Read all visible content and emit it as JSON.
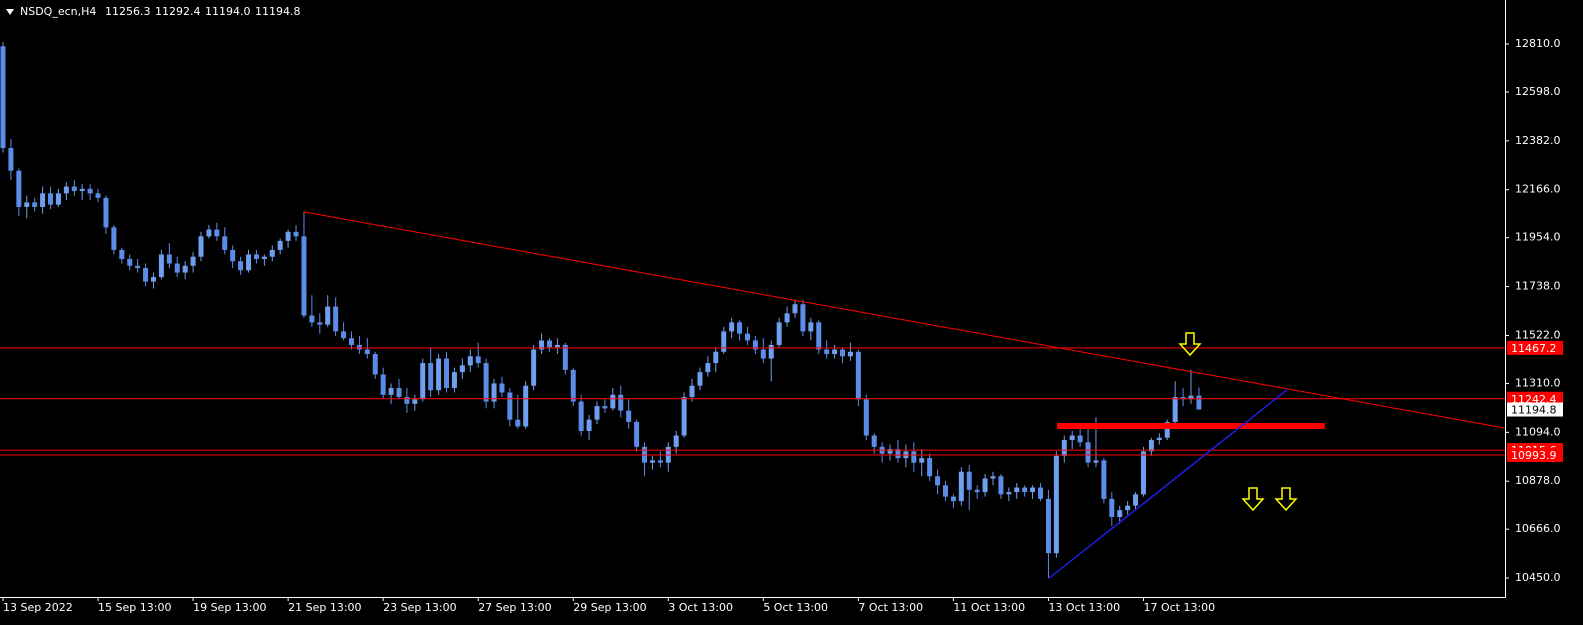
{
  "chart_data": {
    "type": "candlestick",
    "title": "NSDQ_ecn,H4",
    "header_values": [
      "11256.3",
      "11292.4",
      "11194.0",
      "11194.8"
    ],
    "categories": [
      "13 Sep 2022",
      null,
      null,
      null,
      null,
      null,
      null,
      null,
      null,
      null,
      null,
      null,
      "15 Sep 13:00",
      null,
      null,
      null,
      null,
      null,
      null,
      null,
      null,
      null,
      null,
      null,
      "19 Sep 13:00",
      null,
      null,
      null,
      null,
      null,
      null,
      null,
      null,
      null,
      null,
      null,
      "21 Sep 13:00",
      null,
      null,
      null,
      null,
      null,
      null,
      null,
      null,
      null,
      null,
      null,
      "23 Sep 13:00",
      null,
      null,
      null,
      null,
      null,
      null,
      null,
      null,
      null,
      null,
      null,
      "27 Sep 13:00",
      null,
      null,
      null,
      null,
      null,
      null,
      null,
      null,
      null,
      null,
      null,
      "29 Sep 13:00",
      null,
      null,
      null,
      null,
      null,
      null,
      null,
      null,
      null,
      null,
      null,
      "3 Oct 13:00",
      null,
      null,
      null,
      null,
      null,
      null,
      null,
      null,
      null,
      null,
      null,
      "5 Oct 13:00",
      null,
      null,
      null,
      null,
      null,
      null,
      null,
      null,
      null,
      null,
      null,
      "7 Oct 13:00",
      null,
      null,
      null,
      null,
      null,
      null,
      null,
      null,
      null,
      null,
      null,
      "11 Oct 13:00",
      null,
      null,
      null,
      null,
      null,
      null,
      null,
      null,
      null,
      null,
      null,
      "13 Oct 13:00",
      null,
      null,
      null,
      null,
      null,
      null,
      null,
      null,
      null,
      null,
      null,
      "17 Oct 13:00",
      null,
      null,
      null,
      null,
      null,
      null,
      null
    ],
    "open": [
      12800,
      12350,
      12250,
      12090,
      12110,
      12090,
      12150,
      12100,
      12150,
      12180,
      12160,
      12170,
      12150,
      12130,
      12000,
      11900,
      11860,
      11830,
      11820,
      11760,
      11780,
      11880,
      11840,
      11800,
      11830,
      11870,
      11960,
      11990,
      11960,
      11900,
      11850,
      11810,
      11880,
      11860,
      11870,
      11900,
      11940,
      11980,
      11960,
      11610,
      11580,
      11570,
      11650,
      11540,
      11510,
      11480,
      11460,
      11440,
      11350,
      11260,
      11290,
      11250,
      11220,
      11240,
      11400,
      11280,
      11420,
      11290,
      11360,
      11390,
      11430,
      11400,
      11230,
      11310,
      11270,
      11150,
      11120,
      11300,
      11460,
      11500,
      11470,
      11480,
      11370,
      11230,
      11100,
      11150,
      11210,
      11200,
      11260,
      11190,
      11140,
      11030,
      10960,
      10970,
      10960,
      11030,
      11080,
      11250,
      11300,
      11360,
      11400,
      11450,
      11540,
      11580,
      11530,
      11500,
      11460,
      11420,
      11480,
      11580,
      11620,
      11660,
      11540,
      11580,
      11460,
      11440,
      11460,
      11430,
      11450,
      11240,
      11080,
      11030,
      11000,
      11020,
      10980,
      11010,
      10960,
      10980,
      10900,
      10860,
      10810,
      10790,
      10920,
      10840,
      10830,
      10890,
      10900,
      10820,
      10830,
      10850,
      10830,
      10850,
      10800,
      10560,
      10990,
      11060,
      11080,
      11050,
      10960,
      10970,
      10800,
      10720,
      10750,
      10770,
      10820,
      11010,
      11060,
      11070,
      11140,
      11250,
      11240,
      11256.3
    ],
    "high": [
      12820,
      12390,
      12260,
      12140,
      12130,
      12180,
      12180,
      12170,
      12200,
      12210,
      12190,
      12190,
      12170,
      12140,
      12010,
      11910,
      11880,
      11860,
      11840,
      11800,
      11900,
      11930,
      11870,
      11850,
      11890,
      11980,
      12010,
      12020,
      12000,
      11920,
      11870,
      11900,
      11900,
      11880,
      11920,
      11950,
      11990,
      12010,
      12070,
      11700,
      11620,
      11700,
      11690,
      11580,
      11540,
      11520,
      11510,
      11450,
      11380,
      11310,
      11330,
      11290,
      11260,
      11420,
      11470,
      11440,
      11450,
      11380,
      11420,
      11460,
      11490,
      11420,
      11330,
      11340,
      11290,
      11260,
      11320,
      11480,
      11530,
      11510,
      11510,
      11490,
      11380,
      11260,
      11170,
      11230,
      11240,
      11290,
      11300,
      11240,
      11150,
      11050,
      10990,
      11010,
      11050,
      11100,
      11270,
      11330,
      11380,
      11430,
      11470,
      11560,
      11600,
      11590,
      11560,
      11520,
      11510,
      11500,
      11600,
      11650,
      11680,
      11680,
      11600,
      11590,
      11500,
      11480,
      11470,
      11490,
      11460,
      11260,
      11090,
      11050,
      11040,
      11060,
      11040,
      11050,
      11020,
      11000,
      10930,
      10880,
      10820,
      10940,
      10950,
      10860,
      10910,
      10920,
      10910,
      10850,
      10870,
      10860,
      10860,
      10870,
      10840,
      11010,
      11080,
      11100,
      11110,
      11120,
      11160,
      10980,
      10830,
      10770,
      10790,
      10830,
      11030,
      11070,
      11090,
      11150,
      11320,
      11290,
      11370,
      11292.4
    ],
    "low": [
      12330,
      12210,
      12050,
      12040,
      12070,
      12060,
      12080,
      12090,
      12120,
      12140,
      12120,
      12120,
      12110,
      11970,
      11880,
      11840,
      11810,
      11800,
      11740,
      11730,
      11770,
      11820,
      11780,
      11770,
      11800,
      11850,
      11950,
      11940,
      11880,
      11820,
      11790,
      11800,
      11840,
      11830,
      11850,
      11880,
      11910,
      11940,
      11600,
      11560,
      11530,
      11560,
      11520,
      11500,
      11460,
      11440,
      11420,
      11330,
      11240,
      11220,
      11240,
      11180,
      11190,
      11230,
      11250,
      11260,
      11270,
      11270,
      11330,
      11360,
      11380,
      11200,
      11200,
      11250,
      11120,
      11110,
      11110,
      11280,
      11440,
      11450,
      11440,
      11350,
      11210,
      11080,
      11060,
      11130,
      11180,
      11190,
      11160,
      11110,
      11010,
      10900,
      10930,
      10940,
      10920,
      11000,
      11070,
      11230,
      11280,
      11340,
      11360,
      11440,
      11510,
      11500,
      11480,
      11440,
      11400,
      11320,
      11470,
      11560,
      11600,
      11520,
      11500,
      11440,
      11420,
      11420,
      11400,
      11410,
      11210,
      11060,
      11000,
      10960,
      10970,
      10960,
      10940,
      10920,
      10900,
      10880,
      10820,
      10790,
      10760,
      10770,
      10750,
      10800,
      10810,
      10860,
      10800,
      10790,
      10800,
      10810,
      10800,
      10790,
      10450,
      10540,
      10960,
      11020,
      11030,
      10940,
      10940,
      10780,
      10680,
      10690,
      10730,
      10750,
      10810,
      10990,
      11040,
      11060,
      11130,
      11210,
      11220,
      11194.0
    ],
    "close": [
      12350,
      12250,
      12090,
      12110,
      12090,
      12150,
      12100,
      12150,
      12180,
      12160,
      12170,
      12150,
      12130,
      12000,
      11900,
      11860,
      11830,
      11820,
      11760,
      11780,
      11880,
      11840,
      11800,
      11830,
      11870,
      11960,
      11990,
      11960,
      11900,
      11850,
      11810,
      11880,
      11860,
      11870,
      11900,
      11940,
      11980,
      11960,
      11610,
      11580,
      11570,
      11650,
      11540,
      11510,
      11480,
      11460,
      11440,
      11350,
      11260,
      11290,
      11250,
      11220,
      11240,
      11400,
      11280,
      11420,
      11290,
      11360,
      11390,
      11430,
      11400,
      11230,
      11310,
      11270,
      11150,
      11120,
      11300,
      11460,
      11500,
      11470,
      11480,
      11370,
      11230,
      11100,
      11150,
      11210,
      11200,
      11260,
      11190,
      11140,
      11030,
      10960,
      10970,
      10960,
      11030,
      11080,
      11250,
      11300,
      11360,
      11400,
      11450,
      11540,
      11580,
      11530,
      11500,
      11460,
      11420,
      11480,
      11580,
      11620,
      11660,
      11540,
      11580,
      11460,
      11440,
      11460,
      11430,
      11450,
      11240,
      11080,
      11030,
      11000,
      11020,
      10980,
      11010,
      10960,
      10980,
      10900,
      10860,
      10810,
      10790,
      10920,
      10840,
      10830,
      10890,
      10900,
      10820,
      10830,
      10850,
      10830,
      10850,
      10800,
      10560,
      10990,
      11060,
      11080,
      11050,
      10960,
      10970,
      10800,
      10720,
      10750,
      10770,
      10820,
      11010,
      11060,
      11070,
      11140,
      11250,
      11240,
      11256.3,
      11194.8
    ],
    "up_color": "#6fa0f0",
    "down_color": "#5b8de8",
    "ylim": [
      10366.4,
      13004.4
    ],
    "yticks": [
      {
        "value": 12810,
        "label": "12810.0"
      },
      {
        "value": 12598,
        "label": "12598.0"
      },
      {
        "value": 12382,
        "label": "12382.0"
      },
      {
        "value": 12166,
        "label": "12166.0"
      },
      {
        "value": 11954,
        "label": "11954.0"
      },
      {
        "value": 11738,
        "label": "11738.0"
      },
      {
        "value": 11522,
        "label": "11522.0"
      },
      {
        "value": 11310,
        "label": "11310.0"
      },
      {
        "value": 11094,
        "label": "11094.0"
      },
      {
        "value": 10878,
        "label": "10878.0"
      },
      {
        "value": 10666,
        "label": "10666.0"
      },
      {
        "value": 10450,
        "label": "10450.0"
      }
    ],
    "hlines": [
      {
        "value": 11015.6,
        "color": "#ff0000"
      },
      {
        "value": 11467.2,
        "color": "#ff0000"
      },
      {
        "value": 11242.4,
        "color": "#ff0000"
      },
      {
        "value": 10993.9,
        "color": "#ff0000"
      }
    ],
    "trendlines": [
      {
        "color": "#ff0000",
        "width": 1,
        "x": [
          38,
          189.6
        ],
        "y": [
          12068,
          11113
        ]
      },
      {
        "color": "#ff0000",
        "width": 6,
        "x": [
          133.1,
          166.9
        ],
        "y": [
          11122,
          11122
        ]
      },
      {
        "color": "#1e1ee6",
        "width": 1.5,
        "x": [
          132.1,
          162.1
        ],
        "y": [
          10450,
          11281
        ]
      }
    ]
  }
}
